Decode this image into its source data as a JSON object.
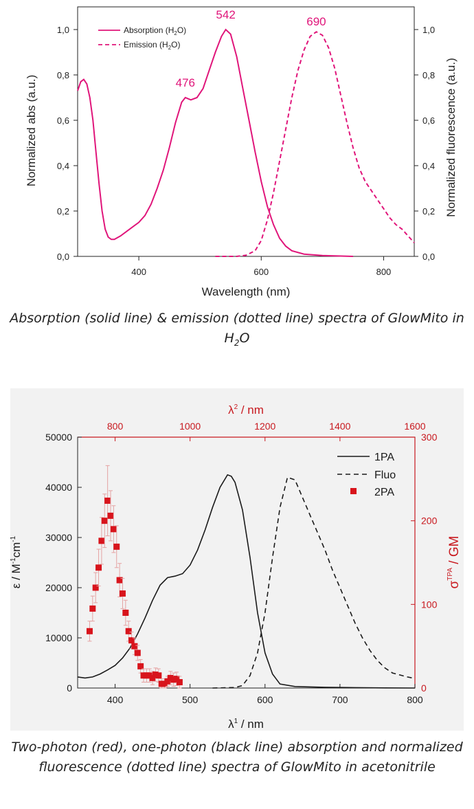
{
  "colors": {
    "magenta": "#e0157a",
    "red": "#d8141c",
    "red_axis": "#c8181e",
    "red_errorbar": "#e5a2a2",
    "black": "#1a1a1a",
    "panel2_bg": "#f2f2f2"
  },
  "figure1": {
    "caption_pre": "Absorption (solid line) & emission (dotted line) spectra of GlowMito in H",
    "caption_sub": "2",
    "caption_post": "O",
    "chart_data": {
      "type": "line",
      "xlabel": "Wavelength (nm)",
      "ylabel_left": "Normalized abs (a.u.)",
      "ylabel_right": "Normalized fluorescence (a.u.)",
      "xlim": [
        300,
        850
      ],
      "ylim": [
        0,
        1.1
      ],
      "x_ticks": [
        "400",
        "600",
        "800"
      ],
      "x_tick_values": [
        400,
        600,
        800
      ],
      "y_ticks": [
        "0,0",
        "0,2",
        "0,4",
        "0,6",
        "0,8",
        "1,0"
      ],
      "y_tick_values": [
        0,
        0.2,
        0.4,
        0.6,
        0.8,
        1.0
      ],
      "legend": {
        "position": "top-left",
        "absorption_pre": "Absorption (H",
        "absorption_sub": "2",
        "absorption_post": "O)",
        "emission_pre": "Emission (H",
        "emission_sub": "2",
        "emission_post": "O)"
      },
      "annotations": [
        {
          "text": "476",
          "x": 476,
          "y": 0.73
        },
        {
          "text": "542",
          "x": 542,
          "y": 1.03
        },
        {
          "text": "690",
          "x": 690,
          "y": 1.0
        }
      ],
      "series": [
        {
          "style": "solid",
          "points": [
            [
              300,
              0.73
            ],
            [
              305,
              0.77
            ],
            [
              310,
              0.78
            ],
            [
              315,
              0.76
            ],
            [
              320,
              0.7
            ],
            [
              325,
              0.6
            ],
            [
              330,
              0.46
            ],
            [
              335,
              0.32
            ],
            [
              340,
              0.2
            ],
            [
              345,
              0.12
            ],
            [
              350,
              0.085
            ],
            [
              355,
              0.075
            ],
            [
              360,
              0.075
            ],
            [
              370,
              0.09
            ],
            [
              380,
              0.11
            ],
            [
              390,
              0.13
            ],
            [
              400,
              0.15
            ],
            [
              410,
              0.18
            ],
            [
              420,
              0.23
            ],
            [
              430,
              0.3
            ],
            [
              440,
              0.38
            ],
            [
              450,
              0.48
            ],
            [
              460,
              0.59
            ],
            [
              470,
              0.68
            ],
            [
              476,
              0.7
            ],
            [
              485,
              0.69
            ],
            [
              495,
              0.7
            ],
            [
              505,
              0.74
            ],
            [
              515,
              0.82
            ],
            [
              525,
              0.9
            ],
            [
              535,
              0.97
            ],
            [
              542,
              1.0
            ],
            [
              550,
              0.98
            ],
            [
              560,
              0.88
            ],
            [
              570,
              0.74
            ],
            [
              580,
              0.6
            ],
            [
              590,
              0.46
            ],
            [
              600,
              0.33
            ],
            [
              610,
              0.22
            ],
            [
              620,
              0.14
            ],
            [
              630,
              0.08
            ],
            [
              640,
              0.045
            ],
            [
              650,
              0.025
            ],
            [
              670,
              0.01
            ],
            [
              700,
              0.004
            ],
            [
              750,
              0.0
            ]
          ]
        },
        {
          "style": "dashed",
          "points": [
            [
              525,
              0.0
            ],
            [
              560,
              0.0
            ],
            [
              575,
              0.005
            ],
            [
              590,
              0.025
            ],
            [
              600,
              0.07
            ],
            [
              610,
              0.16
            ],
            [
              620,
              0.28
            ],
            [
              630,
              0.42
            ],
            [
              640,
              0.56
            ],
            [
              650,
              0.7
            ],
            [
              660,
              0.82
            ],
            [
              670,
              0.91
            ],
            [
              680,
              0.97
            ],
            [
              690,
              0.99
            ],
            [
              700,
              0.975
            ],
            [
              710,
              0.92
            ],
            [
              720,
              0.83
            ],
            [
              730,
              0.71
            ],
            [
              740,
              0.59
            ],
            [
              750,
              0.48
            ],
            [
              760,
              0.39
            ],
            [
              770,
              0.33
            ],
            [
              780,
              0.29
            ],
            [
              790,
              0.25
            ],
            [
              800,
              0.21
            ],
            [
              810,
              0.17
            ],
            [
              820,
              0.14
            ],
            [
              830,
              0.12
            ],
            [
              840,
              0.09
            ],
            [
              850,
              0.06
            ]
          ]
        }
      ]
    }
  },
  "figure2": {
    "caption": "Two-photon (red), one-photon (black line) absorption and normalized fluorescence (dotted line) spectra of GlowMito in acetonitrile",
    "chart_data": {
      "type": "line",
      "xlabel_bottom_sym": "λ",
      "xlabel_bottom_sup": "1",
      "xlabel_bottom_unit": " / nm",
      "xlabel_top_sym": "λ",
      "xlabel_top_sup": "2",
      "xlabel_top_unit": " / nm",
      "ylabel_left": "ε / M",
      "ylabel_left_sup1": "-1",
      "ylabel_left_mid": "cm",
      "ylabel_left_sup2": "-1",
      "ylabel_right_sym": "σ",
      "ylabel_right_sup": "TPA",
      "ylabel_right_unit": " / GM",
      "xlim_bottom": [
        350,
        800
      ],
      "xlim_top": [
        700,
        1600
      ],
      "ylim_left": [
        0,
        50000
      ],
      "ylim_right": [
        0,
        300
      ],
      "x_ticks_bottom": [
        "400",
        "500",
        "600",
        "700",
        "800"
      ],
      "x_tick_values_bottom": [
        400,
        500,
        600,
        700,
        800
      ],
      "x_ticks_top": [
        "800",
        "1000",
        "1200",
        "1400",
        "1600"
      ],
      "x_tick_values_top": [
        800,
        1000,
        1200,
        1400,
        1600
      ],
      "y_ticks_left": [
        "0",
        "10000",
        "20000",
        "30000",
        "40000",
        "50000"
      ],
      "y_tick_values_left": [
        0,
        10000,
        20000,
        30000,
        40000,
        50000
      ],
      "y_ticks_right": [
        "0",
        "100",
        "200",
        "300"
      ],
      "y_tick_values_right": [
        0,
        100,
        200,
        300
      ],
      "legend": {
        "position": "top-right",
        "entries": [
          "1PA",
          "Fluo",
          "2PA"
        ]
      },
      "series_1pa": [
        [
          350,
          2200
        ],
        [
          360,
          2000
        ],
        [
          370,
          2200
        ],
        [
          380,
          2800
        ],
        [
          390,
          3600
        ],
        [
          400,
          4500
        ],
        [
          410,
          6000
        ],
        [
          420,
          8000
        ],
        [
          430,
          10800
        ],
        [
          440,
          14000
        ],
        [
          450,
          17500
        ],
        [
          460,
          20500
        ],
        [
          470,
          22000
        ],
        [
          480,
          22300
        ],
        [
          490,
          22800
        ],
        [
          500,
          24500
        ],
        [
          510,
          27500
        ],
        [
          520,
          31500
        ],
        [
          530,
          36000
        ],
        [
          540,
          40000
        ],
        [
          550,
          42500
        ],
        [
          555,
          42200
        ],
        [
          560,
          41000
        ],
        [
          570,
          35500
        ],
        [
          580,
          26000
        ],
        [
          590,
          15000
        ],
        [
          600,
          7000
        ],
        [
          610,
          2800
        ],
        [
          620,
          800
        ],
        [
          640,
          300
        ],
        [
          680,
          150
        ],
        [
          720,
          80
        ],
        [
          760,
          30
        ],
        [
          800,
          0
        ]
      ],
      "series_fluo": [
        [
          530,
          0
        ],
        [
          560,
          100
        ],
        [
          570,
          500
        ],
        [
          580,
          2500
        ],
        [
          590,
          7000
        ],
        [
          600,
          15000
        ],
        [
          610,
          26000
        ],
        [
          620,
          36000
        ],
        [
          630,
          42000
        ],
        [
          640,
          41500
        ],
        [
          650,
          38000
        ],
        [
          660,
          34500
        ],
        [
          670,
          31000
        ],
        [
          680,
          27500
        ],
        [
          690,
          23500
        ],
        [
          700,
          20000
        ],
        [
          710,
          16500
        ],
        [
          720,
          13000
        ],
        [
          730,
          10000
        ],
        [
          740,
          7500
        ],
        [
          750,
          5500
        ],
        [
          760,
          4000
        ],
        [
          770,
          3000
        ],
        [
          780,
          2600
        ],
        [
          790,
          2200
        ],
        [
          800,
          1900
        ]
      ],
      "series_2pa": [
        {
          "x": 732,
          "y": 68,
          "err": 12
        },
        {
          "x": 740,
          "y": 95,
          "err": 15
        },
        {
          "x": 748,
          "y": 120,
          "err": 18
        },
        {
          "x": 756,
          "y": 144,
          "err": 22
        },
        {
          "x": 764,
          "y": 176,
          "err": 28
        },
        {
          "x": 772,
          "y": 200,
          "err": 32
        },
        {
          "x": 780,
          "y": 224,
          "err": 42
        },
        {
          "x": 788,
          "y": 206,
          "err": 30
        },
        {
          "x": 796,
          "y": 190,
          "err": 28
        },
        {
          "x": 804,
          "y": 169,
          "err": 25
        },
        {
          "x": 812,
          "y": 129,
          "err": 20
        },
        {
          "x": 820,
          "y": 113,
          "err": 18
        },
        {
          "x": 828,
          "y": 90,
          "err": 15
        },
        {
          "x": 836,
          "y": 68,
          "err": 12
        },
        {
          "x": 844,
          "y": 57,
          "err": 10
        },
        {
          "x": 852,
          "y": 50,
          "err": 10
        },
        {
          "x": 860,
          "y": 42,
          "err": 9
        },
        {
          "x": 868,
          "y": 26,
          "err": 8
        },
        {
          "x": 876,
          "y": 15,
          "err": 8
        },
        {
          "x": 884,
          "y": 15,
          "err": 8
        },
        {
          "x": 892,
          "y": 15,
          "err": 8
        },
        {
          "x": 900,
          "y": 12,
          "err": 8
        },
        {
          "x": 908,
          "y": 16,
          "err": 8
        },
        {
          "x": 916,
          "y": 15,
          "err": 8
        },
        {
          "x": 924,
          "y": 5,
          "err": 6
        },
        {
          "x": 932,
          "y": 5,
          "err": 6
        },
        {
          "x": 940,
          "y": 8,
          "err": 6
        },
        {
          "x": 948,
          "y": 12,
          "err": 8
        },
        {
          "x": 956,
          "y": 10,
          "err": 8
        },
        {
          "x": 964,
          "y": 11,
          "err": 8
        },
        {
          "x": 972,
          "y": 7,
          "err": 7
        }
      ]
    }
  }
}
